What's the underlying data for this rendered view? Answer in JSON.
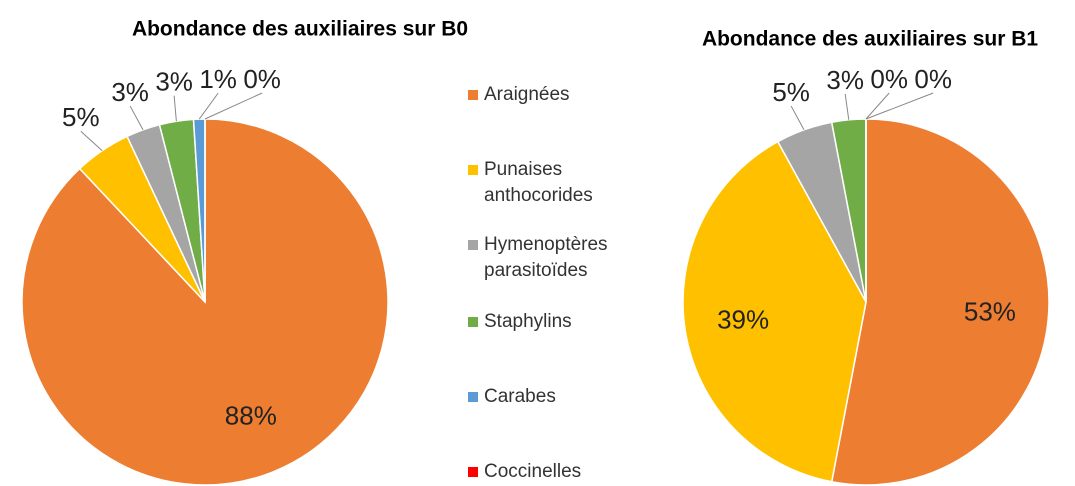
{
  "chart_data": [
    {
      "type": "pie",
      "title": "Abondance des auxiliaires sur B0",
      "categories": [
        "Araignées",
        "Punaises anthocorides",
        "Hymenoptères parasitoïdes",
        "Staphylins",
        "Carabes",
        "Coccinelles"
      ],
      "colors": [
        "#ed7d31",
        "#ffc000",
        "#a5a5a5",
        "#70ad47",
        "#5b9bd5",
        "#ff0000"
      ],
      "values": [
        88,
        5,
        3,
        3,
        1,
        0
      ],
      "value_labels": [
        "88%",
        "5%",
        "3%",
        "3%",
        "1%",
        "0%"
      ]
    },
    {
      "type": "pie",
      "title": "Abondance des auxiliaires sur B1",
      "categories": [
        "Araignées",
        "Punaises anthocorides",
        "Hymenoptères parasitoïdes",
        "Staphylins",
        "Carabes",
        "Coccinelles"
      ],
      "colors": [
        "#ed7d31",
        "#ffc000",
        "#a5a5a5",
        "#70ad47",
        "#5b9bd5",
        "#ff0000"
      ],
      "values": [
        53,
        39,
        5,
        3,
        0,
        0
      ],
      "value_labels": [
        "53%",
        "39%",
        "5%",
        "3%",
        "0%",
        "0%"
      ]
    }
  ]
}
